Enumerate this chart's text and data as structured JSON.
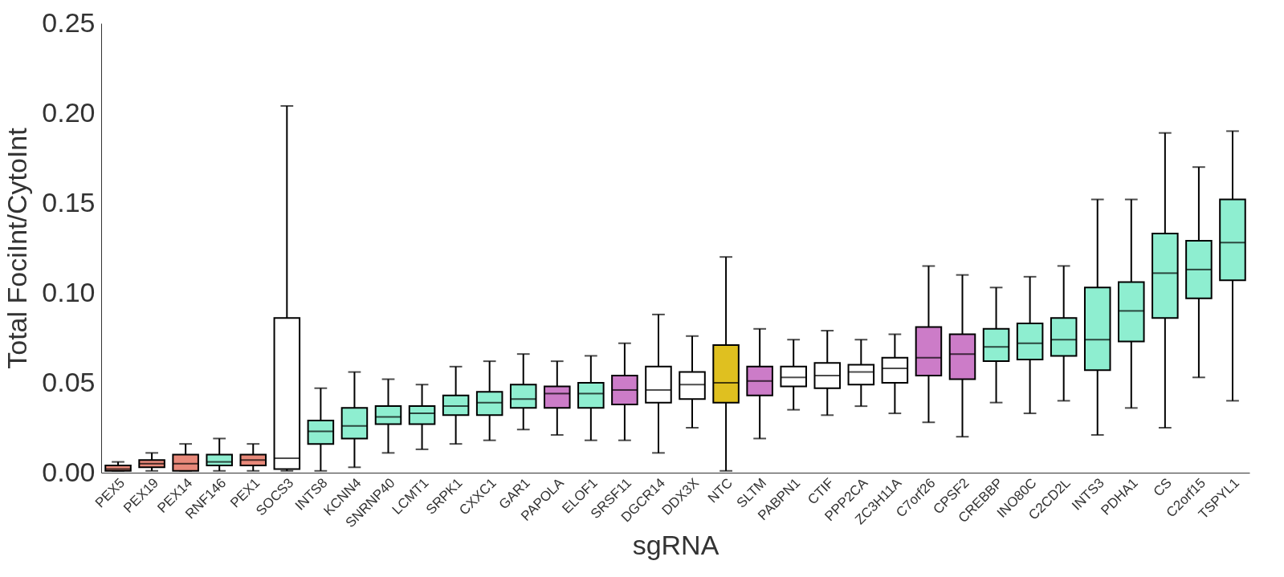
{
  "chart_data": {
    "type": "box",
    "xlabel": "sgRNA",
    "ylabel": "Total FociInt/CytoInt",
    "categories": [
      "PEX5",
      "PEX19",
      "PEX14",
      "RNF146",
      "PEX1",
      "SOCS3",
      "INTS8",
      "KCNN4",
      "SNRNP40",
      "LCMT1",
      "SRPK1",
      "CXXC1",
      "GAR1",
      "PAPOLA",
      "ELOF1",
      "SRSF11",
      "DGCR14",
      "DDX3X",
      "NTC",
      "SLTM",
      "PABPN1",
      "CTIF",
      "PPP2CA",
      "ZC3H11A",
      "C7orf26",
      "CPSF2",
      "CREBBP",
      "INO80C",
      "C2CD2L",
      "INTS3",
      "PDHA1",
      "CS",
      "C2orf15",
      "TSPYL1"
    ],
    "boxes": [
      {
        "low": 0.001,
        "q1": 0.001,
        "median": 0.002,
        "q3": 0.004,
        "high": 0.006
      },
      {
        "low": 0.001,
        "q1": 0.003,
        "median": 0.005,
        "q3": 0.007,
        "high": 0.011
      },
      {
        "low": 0.001,
        "q1": 0.001,
        "median": 0.005,
        "q3": 0.01,
        "high": 0.016
      },
      {
        "low": 0.001,
        "q1": 0.004,
        "median": 0.006,
        "q3": 0.01,
        "high": 0.019
      },
      {
        "low": 0.001,
        "q1": 0.004,
        "median": 0.007,
        "q3": 0.01,
        "high": 0.016
      },
      {
        "low": 0.001,
        "q1": 0.002,
        "median": 0.008,
        "q3": 0.086,
        "high": 0.204
      },
      {
        "low": 0.001,
        "q1": 0.016,
        "median": 0.023,
        "q3": 0.029,
        "high": 0.047
      },
      {
        "low": 0.003,
        "q1": 0.019,
        "median": 0.026,
        "q3": 0.036,
        "high": 0.056
      },
      {
        "low": 0.011,
        "q1": 0.027,
        "median": 0.031,
        "q3": 0.037,
        "high": 0.052
      },
      {
        "low": 0.013,
        "q1": 0.027,
        "median": 0.033,
        "q3": 0.037,
        "high": 0.049
      },
      {
        "low": 0.016,
        "q1": 0.032,
        "median": 0.037,
        "q3": 0.043,
        "high": 0.059
      },
      {
        "low": 0.018,
        "q1": 0.032,
        "median": 0.039,
        "q3": 0.045,
        "high": 0.062
      },
      {
        "low": 0.024,
        "q1": 0.036,
        "median": 0.041,
        "q3": 0.049,
        "high": 0.066
      },
      {
        "low": 0.021,
        "q1": 0.036,
        "median": 0.044,
        "q3": 0.048,
        "high": 0.062
      },
      {
        "low": 0.018,
        "q1": 0.036,
        "median": 0.044,
        "q3": 0.05,
        "high": 0.065
      },
      {
        "low": 0.018,
        "q1": 0.038,
        "median": 0.046,
        "q3": 0.054,
        "high": 0.072
      },
      {
        "low": 0.011,
        "q1": 0.039,
        "median": 0.046,
        "q3": 0.059,
        "high": 0.088
      },
      {
        "low": 0.025,
        "q1": 0.041,
        "median": 0.049,
        "q3": 0.056,
        "high": 0.076
      },
      {
        "low": 0.001,
        "q1": 0.039,
        "median": 0.05,
        "q3": 0.071,
        "high": 0.12
      },
      {
        "low": 0.019,
        "q1": 0.043,
        "median": 0.051,
        "q3": 0.059,
        "high": 0.08
      },
      {
        "low": 0.035,
        "q1": 0.048,
        "median": 0.053,
        "q3": 0.059,
        "high": 0.074
      },
      {
        "low": 0.032,
        "q1": 0.047,
        "median": 0.054,
        "q3": 0.061,
        "high": 0.079
      },
      {
        "low": 0.037,
        "q1": 0.049,
        "median": 0.056,
        "q3": 0.06,
        "high": 0.074
      },
      {
        "low": 0.033,
        "q1": 0.05,
        "median": 0.058,
        "q3": 0.064,
        "high": 0.077
      },
      {
        "low": 0.028,
        "q1": 0.054,
        "median": 0.064,
        "q3": 0.081,
        "high": 0.115
      },
      {
        "low": 0.02,
        "q1": 0.052,
        "median": 0.066,
        "q3": 0.077,
        "high": 0.11
      },
      {
        "low": 0.039,
        "q1": 0.062,
        "median": 0.07,
        "q3": 0.08,
        "high": 0.103
      },
      {
        "low": 0.033,
        "q1": 0.063,
        "median": 0.072,
        "q3": 0.083,
        "high": 0.109
      },
      {
        "low": 0.04,
        "q1": 0.065,
        "median": 0.074,
        "q3": 0.086,
        "high": 0.115
      },
      {
        "low": 0.021,
        "q1": 0.057,
        "median": 0.074,
        "q3": 0.103,
        "high": 0.152
      },
      {
        "low": 0.036,
        "q1": 0.073,
        "median": 0.09,
        "q3": 0.106,
        "high": 0.152
      },
      {
        "low": 0.025,
        "q1": 0.086,
        "median": 0.111,
        "q3": 0.133,
        "high": 0.189
      },
      {
        "low": 0.053,
        "q1": 0.097,
        "median": 0.113,
        "q3": 0.129,
        "high": 0.17
      },
      {
        "low": 0.04,
        "q1": 0.107,
        "median": 0.128,
        "q3": 0.152,
        "high": 0.19
      }
    ],
    "colors": [
      "#e8897a",
      "#e8897a",
      "#e8897a",
      "#8eeed0",
      "#e8897a",
      "#ffffff",
      "#8eeed0",
      "#8eeed0",
      "#8eeed0",
      "#8eeed0",
      "#8eeed0",
      "#8eeed0",
      "#8eeed0",
      "#cc7cc8",
      "#8eeed0",
      "#cc7cc8",
      "#ffffff",
      "#ffffff",
      "#dfc020",
      "#cc7cc8",
      "#ffffff",
      "#ffffff",
      "#ffffff",
      "#ffffff",
      "#cc7cc8",
      "#cc7cc8",
      "#8eeed0",
      "#8eeed0",
      "#8eeed0",
      "#8eeed0",
      "#8eeed0",
      "#8eeed0",
      "#8eeed0",
      "#8eeed0"
    ],
    "ylim": [
      0,
      0.25
    ],
    "yticks": [
      {
        "value": 0,
        "label": "0.00"
      },
      0.05,
      {
        "value": 0.1,
        "label": "0.10"
      },
      0.15,
      {
        "value": 0.2,
        "label": "0.20"
      },
      0.25
    ],
    "grid": false
  }
}
